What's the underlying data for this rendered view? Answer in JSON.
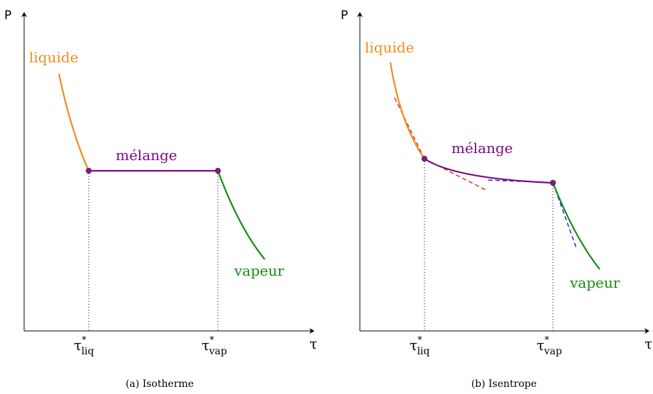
{
  "panel_a": {
    "axis_y": "P",
    "axis_x": "τ",
    "tick_liq": {
      "base": "τ",
      "sup": "*",
      "sub": "liq"
    },
    "tick_vap": {
      "base": "τ",
      "sup": "*",
      "sub": "vap"
    },
    "label_liquide": "liquide",
    "label_melange": "mélange",
    "label_vapeur": "vapeur",
    "caption": "(a) Isotherme"
  },
  "panel_b": {
    "axis_y": "P",
    "axis_x": "τ",
    "tick_liq": {
      "base": "τ",
      "sup": "*",
      "sub": "liq"
    },
    "tick_vap": {
      "base": "τ",
      "sup": "*",
      "sub": "vap"
    },
    "label_liquide": "liquide",
    "label_melange": "mélange",
    "label_vapeur": "vapeur",
    "caption": "(b) Isentrope"
  },
  "colors": {
    "liquide": "#f28c1c",
    "melange": "#7d0a86",
    "vapeur": "#118c11",
    "tangent_red": "#e02020",
    "tangent_blue": "#1c1cd9",
    "point": "#7d1f76",
    "axis": "#000000"
  }
}
